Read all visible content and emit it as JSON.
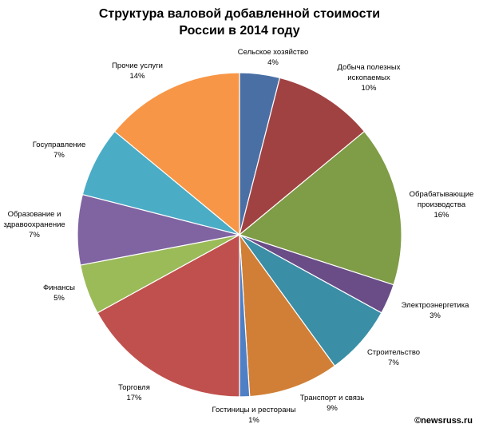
{
  "chart_data": {
    "type": "pie",
    "title": "Структура валовой добавленной стоимости",
    "subtitle": "России в 2014 году",
    "start_angle_deg": 0,
    "direction": "clockwise",
    "legend": "none",
    "slices": [
      {
        "label": [
          "Сельское хозяйство"
        ],
        "pct_label": "4%",
        "value": 4,
        "color": "#4a6fa5"
      },
      {
        "label": [
          "Добыча полезных",
          "ископаемых"
        ],
        "pct_label": "10%",
        "value": 10,
        "color": "#a14242"
      },
      {
        "label": [
          "Обрабатывающие",
          "производства"
        ],
        "pct_label": "16%",
        "value": 16,
        "color": "#7f9c46"
      },
      {
        "label": [
          "Электроэнергетика"
        ],
        "pct_label": "3%",
        "value": 3,
        "color": "#6a4d87"
      },
      {
        "label": [
          "Строительство"
        ],
        "pct_label": "7%",
        "value": 7,
        "color": "#3a8ea6"
      },
      {
        "label": [
          "Транспорт и связь"
        ],
        "pct_label": "9%",
        "value": 9,
        "color": "#d17f36"
      },
      {
        "label": [
          "Гостиницы и рестораны"
        ],
        "pct_label": "1%",
        "value": 1,
        "color": "#4f7fc4"
      },
      {
        "label": [
          "Торговля"
        ],
        "pct_label": "17%",
        "value": 17,
        "color": "#c0504d"
      },
      {
        "label": [
          "Финансы"
        ],
        "pct_label": "5%",
        "value": 5,
        "color": "#9bbb59"
      },
      {
        "label": [
          "Образование и",
          "здравоохранение"
        ],
        "pct_label": "7%",
        "value": 7,
        "color": "#8064a2"
      },
      {
        "label": [
          "Госуправление"
        ],
        "pct_label": "7%",
        "value": 7,
        "color": "#4bacc6"
      },
      {
        "label": [
          "Прочие услуги"
        ],
        "pct_label": "14%",
        "value": 14,
        "color": "#f79646"
      }
    ]
  },
  "watermark": "©newsruss.ru"
}
